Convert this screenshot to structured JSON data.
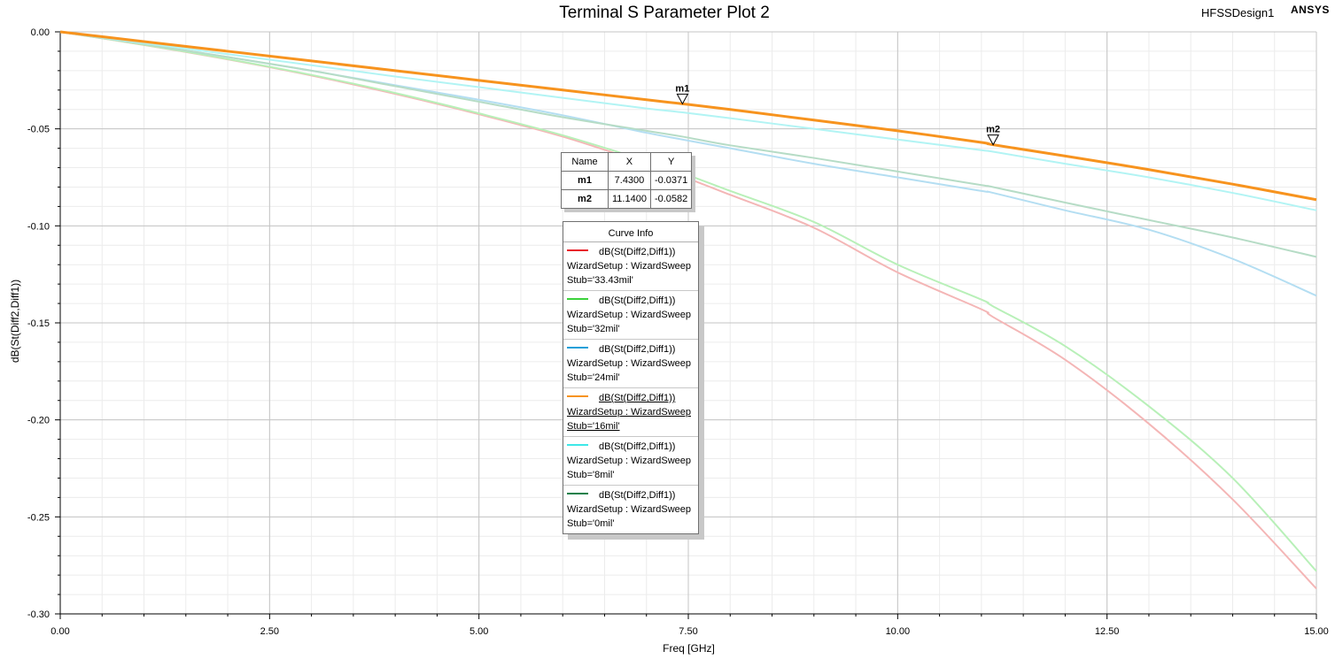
{
  "plot": {
    "title": "Terminal S Parameter Plot 2",
    "design_name": "HFSSDesign1",
    "brand": "ANSYS"
  },
  "chart_data": {
    "type": "line",
    "title": "Terminal S Parameter Plot 2",
    "xlabel": "Freq [GHz]",
    "ylabel": "dB(St(Diff2,Diff1))",
    "xlim": [
      0,
      15
    ],
    "ylim": [
      -0.3,
      0.0
    ],
    "x_ticks": [
      "0.00",
      "2.50",
      "5.00",
      "7.50",
      "10.00",
      "12.50",
      "15.00"
    ],
    "y_ticks": [
      "0.00",
      "-0.05",
      "-0.10",
      "-0.15",
      "-0.20",
      "-0.25",
      "-0.30"
    ],
    "grid": true,
    "legend_position": "center",
    "x": [
      0,
      1,
      2,
      3,
      4,
      5,
      6,
      7,
      7.43,
      8,
      9,
      10,
      11,
      11.14,
      12,
      13,
      14,
      15
    ],
    "series": [
      {
        "name": "dB(St(Diff2,Diff1)) WizardSetup : WizardSweep Stub='33.43mil'",
        "color": "#f4b6b6",
        "values": [
          0,
          -0.0068,
          -0.0142,
          -0.0225,
          -0.032,
          -0.0425,
          -0.054,
          -0.068,
          -0.0745,
          -0.084,
          -0.101,
          -0.124,
          -0.143,
          -0.147,
          -0.169,
          -0.202,
          -0.241,
          -0.287
        ]
      },
      {
        "name": "dB(St(Diff2,Diff1)) WizardSetup : WizardSweep Stub='32mil'",
        "color": "#b8f0b8",
        "values": [
          0,
          -0.0067,
          -0.014,
          -0.0222,
          -0.0315,
          -0.042,
          -0.0533,
          -0.0665,
          -0.0728,
          -0.082,
          -0.098,
          -0.12,
          -0.138,
          -0.1415,
          -0.162,
          -0.193,
          -0.23,
          -0.278
        ]
      },
      {
        "name": "dB(St(Diff2,Diff1)) WizardSetup : WizardSweep Stub='24mil'",
        "color": "#b4def2",
        "values": [
          0,
          -0.0063,
          -0.013,
          -0.02,
          -0.0275,
          -0.035,
          -0.043,
          -0.052,
          -0.0555,
          -0.06,
          -0.068,
          -0.075,
          -0.082,
          -0.083,
          -0.092,
          -0.102,
          -0.117,
          -0.136
        ]
      },
      {
        "name": "dB(St(Diff2,Diff1)) WizardSetup : WizardSweep Stub='16mil'",
        "color": "#f7931e",
        "values": [
          0,
          -0.005,
          -0.01,
          -0.015,
          -0.02,
          -0.025,
          -0.03,
          -0.035,
          -0.0371,
          -0.04,
          -0.0455,
          -0.051,
          -0.057,
          -0.0582,
          -0.064,
          -0.071,
          -0.0785,
          -0.0865
        ]
      },
      {
        "name": "dB(St(Diff2,Diff1)) WizardSetup : WizardSweep Stub='8mil'",
        "color": "#b2f4f4",
        "values": [
          0,
          -0.0058,
          -0.0115,
          -0.0172,
          -0.023,
          -0.0285,
          -0.034,
          -0.0395,
          -0.0415,
          -0.0445,
          -0.05,
          -0.0555,
          -0.061,
          -0.0618,
          -0.068,
          -0.075,
          -0.083,
          -0.092
        ]
      },
      {
        "name": "dB(St(Diff2,Diff1)) WizardSetup : WizardSweep Stub='0mil'",
        "color": "#b6dcc6",
        "values": [
          0,
          -0.0063,
          -0.013,
          -0.02,
          -0.028,
          -0.036,
          -0.044,
          -0.051,
          -0.054,
          -0.0585,
          -0.065,
          -0.072,
          -0.079,
          -0.08,
          -0.088,
          -0.097,
          -0.106,
          -0.116
        ]
      }
    ],
    "markers": [
      {
        "name": "m1",
        "x": 7.43,
        "y": -0.0371
      },
      {
        "name": "m2",
        "x": 11.14,
        "y": -0.0582
      }
    ]
  },
  "marker_table": {
    "headers": [
      "Name",
      "X",
      "Y"
    ],
    "rows": [
      {
        "name": "m1",
        "x": "7.4300",
        "y": "-0.0371"
      },
      {
        "name": "m2",
        "x": "11.1400",
        "y": "-0.0582"
      }
    ]
  },
  "legend": {
    "title": "Curve Info",
    "entries": [
      {
        "line1": "dB(St(Diff2,Diff1))",
        "line2": "WizardSetup : WizardSweep",
        "line3": "Stub='33.43mil'",
        "color": "#e8202a"
      },
      {
        "line1": "dB(St(Diff2,Diff1))",
        "line2": "WizardSetup : WizardSweep",
        "line3": "Stub='32mil'",
        "color": "#3cd23c"
      },
      {
        "line1": "dB(St(Diff2,Diff1))",
        "line2": "WizardSetup : WizardSweep",
        "line3": "Stub='24mil'",
        "color": "#1e9fd8"
      },
      {
        "line1": "dB(St(Diff2,Diff1))",
        "line2": "WizardSetup : WizardSweep",
        "line3": "Stub='16mil'",
        "color": "#f7931e"
      },
      {
        "line1": "dB(St(Diff2,Diff1))",
        "line2": "WizardSetup : WizardSweep",
        "line3": "Stub='8mil'",
        "color": "#3ee8e8"
      },
      {
        "line1": "dB(St(Diff2,Diff1))",
        "line2": "WizardSetup : WizardSweep",
        "line3": "Stub='0mil'",
        "color": "#14804a"
      }
    ]
  }
}
